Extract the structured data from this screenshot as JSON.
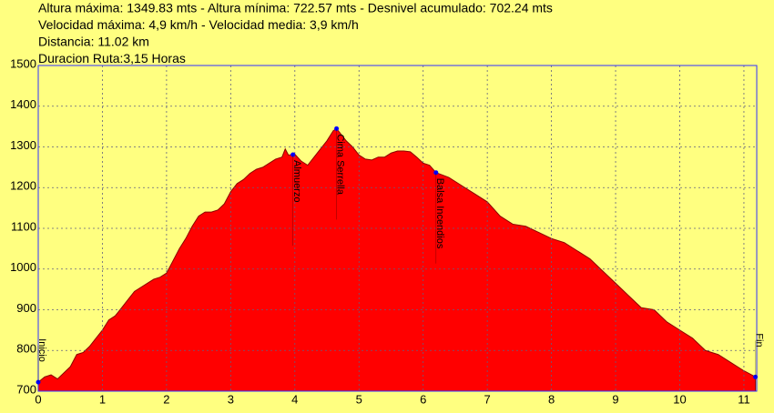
{
  "chart_data": {
    "type": "area",
    "info_lines": [
      "Altura máxima: 1349.83 mts - Altura mínima: 722.57 mts - Desnivel acumulado: 702.24 mts",
      "Velocidad máxima: 4,9 km/h - Velocidad media: 3,9 km/h",
      "Distancia: 11.02 km",
      "Duracion Ruta:3,15 Horas"
    ],
    "x": [
      0,
      0.1,
      0.2,
      0.3,
      0.4,
      0.5,
      0.6,
      0.7,
      0.8,
      0.9,
      1.0,
      1.1,
      1.2,
      1.3,
      1.4,
      1.5,
      1.6,
      1.7,
      1.8,
      1.9,
      2.0,
      2.1,
      2.2,
      2.3,
      2.4,
      2.5,
      2.6,
      2.7,
      2.8,
      2.9,
      3.0,
      3.1,
      3.2,
      3.3,
      3.4,
      3.5,
      3.6,
      3.7,
      3.8,
      3.85,
      3.9,
      4.0,
      4.1,
      4.2,
      4.3,
      4.4,
      4.5,
      4.6,
      4.65,
      4.7,
      4.8,
      4.9,
      5.0,
      5.1,
      5.2,
      5.3,
      5.4,
      5.5,
      5.6,
      5.7,
      5.8,
      5.9,
      6.0,
      6.1,
      6.2,
      6.4,
      6.6,
      6.8,
      7.0,
      7.2,
      7.4,
      7.6,
      7.8,
      8.0,
      8.2,
      8.4,
      8.6,
      8.8,
      9.0,
      9.2,
      9.4,
      9.6,
      9.8,
      10.0,
      10.2,
      10.4,
      10.6,
      10.8,
      11.0,
      11.18
    ],
    "values": [
      722,
      735,
      740,
      730,
      745,
      760,
      790,
      795,
      810,
      830,
      850,
      875,
      885,
      905,
      925,
      945,
      955,
      965,
      975,
      980,
      990,
      1020,
      1050,
      1075,
      1105,
      1130,
      1140,
      1140,
      1145,
      1160,
      1190,
      1210,
      1220,
      1235,
      1245,
      1250,
      1260,
      1270,
      1275,
      1295,
      1280,
      1282,
      1265,
      1255,
      1275,
      1295,
      1315,
      1340,
      1345,
      1335,
      1315,
      1300,
      1280,
      1270,
      1268,
      1275,
      1275,
      1285,
      1290,
      1290,
      1288,
      1275,
      1260,
      1255,
      1237,
      1225,
      1205,
      1185,
      1165,
      1130,
      1110,
      1105,
      1090,
      1075,
      1065,
      1045,
      1025,
      995,
      965,
      935,
      905,
      900,
      870,
      850,
      830,
      800,
      790,
      770,
      750,
      735
    ],
    "color": "#ff0000",
    "waypoints": [
      {
        "label": "Inicio",
        "x": 0,
        "y": 722
      },
      {
        "label": "Almuerzo",
        "x": 3.97,
        "y": 1281
      },
      {
        "label": "Cima Serrella",
        "x": 4.65,
        "y": 1345
      },
      {
        "label": "Balsa Incendios",
        "x": 6.2,
        "y": 1237
      },
      {
        "label": "Fin",
        "x": 11.18,
        "y": 735
      }
    ],
    "xlim": [
      0,
      11.2
    ],
    "xticks": [
      0,
      1,
      2,
      3,
      4,
      5,
      6,
      7,
      8,
      9,
      10,
      11
    ],
    "ylim": [
      700,
      1500
    ],
    "yticks": [
      700,
      800,
      900,
      1000,
      1100,
      1200,
      1300,
      1400,
      1500
    ],
    "grid": true
  }
}
